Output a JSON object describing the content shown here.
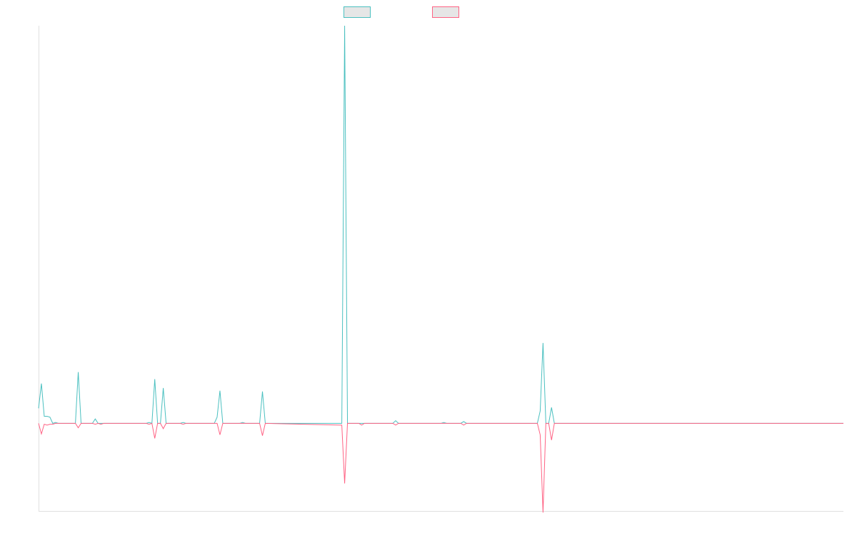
{
  "chart_data": {
    "type": "line",
    "title": "",
    "xlabel": "",
    "ylabel": "",
    "grid": false,
    "legend_position": "top-center",
    "y_range": [
      -100,
      450
    ],
    "x_count": 285,
    "series": [
      {
        "name": "",
        "color": "#4bc0c0",
        "points": [
          [
            0,
            17
          ],
          [
            1,
            45
          ],
          [
            2,
            8
          ],
          [
            3,
            8
          ],
          [
            4,
            7
          ],
          [
            5,
            0
          ],
          [
            6,
            1
          ],
          [
            7,
            0
          ],
          [
            13,
            0
          ],
          [
            14,
            58
          ],
          [
            15,
            0
          ],
          [
            19,
            0
          ],
          [
            20,
            5
          ],
          [
            21,
            0
          ],
          [
            22,
            0
          ],
          [
            23,
            0
          ],
          [
            38,
            0
          ],
          [
            39,
            1
          ],
          [
            40,
            0
          ],
          [
            41,
            50
          ],
          [
            42,
            0
          ],
          [
            43,
            0
          ],
          [
            44,
            40
          ],
          [
            45,
            0
          ],
          [
            50,
            0
          ],
          [
            51,
            1
          ],
          [
            52,
            0
          ],
          [
            62,
            0
          ],
          [
            63,
            7
          ],
          [
            64,
            37
          ],
          [
            65,
            0
          ],
          [
            71,
            0
          ],
          [
            72,
            1
          ],
          [
            73,
            0
          ],
          [
            78,
            0
          ],
          [
            79,
            36
          ],
          [
            80,
            0
          ],
          [
            107,
            0
          ],
          [
            108,
            450
          ],
          [
            109,
            0
          ],
          [
            113,
            0
          ],
          [
            114,
            0
          ],
          [
            115,
            0
          ],
          [
            125,
            0
          ],
          [
            126,
            3
          ],
          [
            127,
            0
          ],
          [
            142,
            0
          ],
          [
            143,
            1
          ],
          [
            144,
            0
          ],
          [
            149,
            0
          ],
          [
            150,
            2
          ],
          [
            151,
            0
          ],
          [
            176,
            0
          ],
          [
            177,
            14
          ],
          [
            178,
            91
          ],
          [
            179,
            0
          ],
          [
            180,
            0
          ],
          [
            181,
            18
          ],
          [
            182,
            0
          ],
          [
            284,
            0
          ]
        ]
      },
      {
        "name": "",
        "color": "#ff6384",
        "points": [
          [
            0,
            0
          ],
          [
            1,
            -12
          ],
          [
            2,
            -1
          ],
          [
            3,
            -2
          ],
          [
            4,
            -1
          ],
          [
            5,
            -1
          ],
          [
            6,
            0
          ],
          [
            7,
            0
          ],
          [
            13,
            0
          ],
          [
            14,
            -5
          ],
          [
            15,
            0
          ],
          [
            19,
            0
          ],
          [
            20,
            -1
          ],
          [
            21,
            0
          ],
          [
            22,
            -1
          ],
          [
            23,
            0
          ],
          [
            38,
            0
          ],
          [
            39,
            -1
          ],
          [
            40,
            0
          ],
          [
            41,
            -17
          ],
          [
            42,
            0
          ],
          [
            43,
            0
          ],
          [
            44,
            -6
          ],
          [
            45,
            0
          ],
          [
            50,
            0
          ],
          [
            51,
            -1
          ],
          [
            52,
            0
          ],
          [
            62,
            0
          ],
          [
            63,
            0
          ],
          [
            64,
            -13
          ],
          [
            65,
            0
          ],
          [
            71,
            0
          ],
          [
            72,
            0
          ],
          [
            73,
            0
          ],
          [
            78,
            0
          ],
          [
            79,
            -14
          ],
          [
            80,
            0
          ],
          [
            107,
            -2
          ],
          [
            108,
            -68
          ],
          [
            109,
            0
          ],
          [
            113,
            0
          ],
          [
            114,
            -2
          ],
          [
            115,
            0
          ],
          [
            125,
            0
          ],
          [
            126,
            -2
          ],
          [
            127,
            0
          ],
          [
            142,
            0
          ],
          [
            143,
            0
          ],
          [
            144,
            0
          ],
          [
            149,
            0
          ],
          [
            150,
            -2
          ],
          [
            151,
            0
          ],
          [
            176,
            0
          ],
          [
            177,
            -13
          ],
          [
            178,
            -101
          ],
          [
            179,
            0
          ],
          [
            180,
            0
          ],
          [
            181,
            -19
          ],
          [
            182,
            0
          ],
          [
            284,
            0
          ]
        ]
      }
    ]
  }
}
